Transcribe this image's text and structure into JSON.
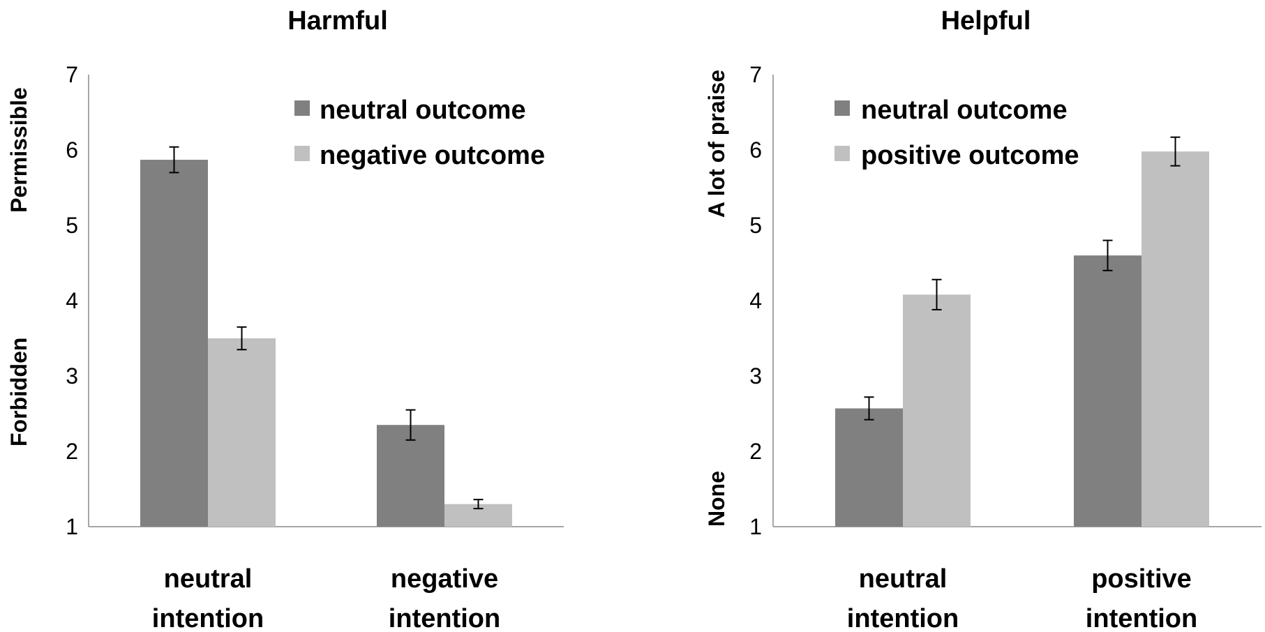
{
  "chart_data": [
    {
      "type": "bar",
      "title": "Harmful",
      "categories": [
        [
          "neutral",
          "intention"
        ],
        [
          "negative",
          "intention"
        ]
      ],
      "series": [
        {
          "name": "neutral outcome",
          "color": "#808080",
          "values": [
            5.87,
            2.35
          ],
          "errors": [
            0.17,
            0.2
          ]
        },
        {
          "name": "negative outcome",
          "color": "#c0c0c0",
          "values": [
            3.5,
            1.3
          ],
          "errors": [
            0.15,
            0.06
          ]
        }
      ],
      "ylim": [
        1,
        7
      ],
      "yticks": [
        "1",
        "2",
        "3",
        "4",
        "5",
        "6",
        "7"
      ],
      "ylabel_top": "Permissible",
      "ylabel_bottom": "Forbidden",
      "legend_position": "top-right"
    },
    {
      "type": "bar",
      "title": "Helpful",
      "categories": [
        [
          "neutral",
          "intention"
        ],
        [
          "positive",
          "intention"
        ]
      ],
      "series": [
        {
          "name": "neutral outcome",
          "color": "#808080",
          "values": [
            2.57,
            4.6
          ],
          "errors": [
            0.15,
            0.2
          ]
        },
        {
          "name": "positive outcome",
          "color": "#c0c0c0",
          "values": [
            4.08,
            5.98
          ],
          "errors": [
            0.2,
            0.19
          ]
        }
      ],
      "ylim": [
        1,
        7
      ],
      "yticks": [
        "1",
        "2",
        "3",
        "4",
        "5",
        "6",
        "7"
      ],
      "ylabel_top": "A  lot of praise",
      "ylabel_bottom": "None",
      "legend_position": "top-left"
    }
  ]
}
